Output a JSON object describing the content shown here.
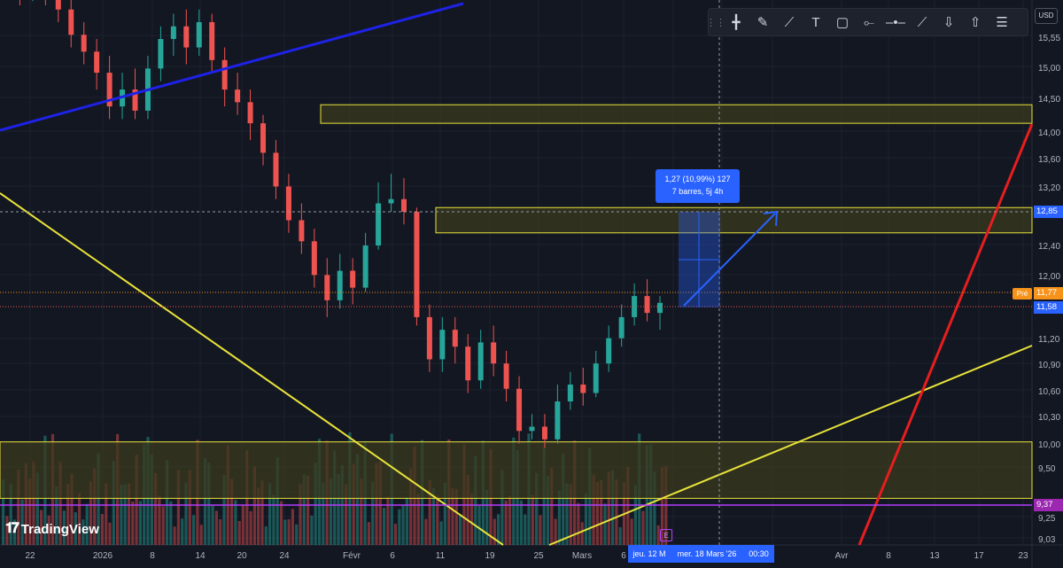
{
  "toolbar": {
    "items": [
      {
        "name": "crosshair-icon",
        "glyph": "╋"
      },
      {
        "name": "brush-icon",
        "glyph": "✎"
      },
      {
        "name": "path-icon",
        "glyph": "⟋"
      },
      {
        "name": "text-icon",
        "glyph": "T"
      },
      {
        "name": "rectangle-icon",
        "glyph": "▢"
      },
      {
        "name": "horizontal-ray-icon",
        "glyph": "⟜"
      },
      {
        "name": "horizontal-line-icon",
        "glyph": "–•–"
      },
      {
        "name": "trend-line-icon",
        "glyph": "⟋"
      },
      {
        "name": "arrow-down-icon",
        "glyph": "⇩"
      },
      {
        "name": "arrow-up-icon",
        "glyph": "⇧"
      },
      {
        "name": "settings-lines-icon",
        "glyph": "☰"
      }
    ]
  },
  "currency": "USD",
  "price_axis": {
    "ticks": [
      "15,55",
      "15,00",
      "14,50",
      "14,00",
      "13,60",
      "13,20",
      "12,85",
      "12,40",
      "12,00",
      "11,58",
      "11,20",
      "10,90",
      "10,60",
      "10,30",
      "10,00",
      "9,50",
      "9,37",
      "9,25",
      "9,03"
    ],
    "tags": [
      {
        "label": "12,85",
        "color": "#2962ff"
      },
      {
        "label": "11,77",
        "color": "#f7931a"
      },
      {
        "label": "11,58",
        "color": "#2962ff"
      },
      {
        "label": "9,37",
        "color": "#9c27b0"
      }
    ],
    "pre_label": "Pré"
  },
  "time_axis": {
    "ticks": [
      "22",
      "2026",
      "8",
      "14",
      "20",
      "24",
      "Févr",
      "6",
      "11",
      "19",
      "25",
      "Mars",
      "6",
      "Avr",
      "8",
      "13",
      "17",
      "23"
    ],
    "selected_date": "jeu. 12 M",
    "cursor_date": "mer. 18 Mars '26",
    "cursor_time": "00:30"
  },
  "measure": {
    "line1": "1,27 (10,99%) 127",
    "line2": "7 barres, 5j 4h"
  },
  "logo": {
    "text": "TradingView"
  },
  "event_badge": "E",
  "colors": {
    "up": "#26a69a",
    "down": "#ef5350",
    "background": "#131722",
    "zone": "#3b3a1e",
    "zone_border": "#e8e33a",
    "blue_line": "#1e22e6",
    "red_line": "#e61e1e",
    "yellow_line": "#e8e33a"
  },
  "chart_data": {
    "type": "candlestick",
    "symbol_currency": "USD",
    "ylim": [
      9.03,
      15.55
    ],
    "candles": [
      {
        "o": 15.62,
        "c": 15.5,
        "h": 15.7,
        "l": 15.4
      },
      {
        "o": 15.5,
        "c": 15.48,
        "h": 15.65,
        "l": 15.3
      },
      {
        "o": 15.48,
        "c": 15.55,
        "h": 15.7,
        "l": 15.35
      },
      {
        "o": 15.55,
        "c": 15.4,
        "h": 15.7,
        "l": 15.3
      },
      {
        "o": 15.4,
        "c": 15.25,
        "h": 15.6,
        "l": 15.1
      },
      {
        "o": 15.25,
        "c": 14.95,
        "h": 15.4,
        "l": 14.8
      },
      {
        "o": 14.95,
        "c": 14.75,
        "h": 15.1,
        "l": 14.6
      },
      {
        "o": 14.75,
        "c": 14.5,
        "h": 14.9,
        "l": 14.3
      },
      {
        "o": 14.5,
        "c": 14.1,
        "h": 14.7,
        "l": 13.95
      },
      {
        "o": 14.1,
        "c": 14.3,
        "h": 14.5,
        "l": 13.95
      },
      {
        "o": 14.3,
        "c": 14.05,
        "h": 14.55,
        "l": 13.95
      },
      {
        "o": 14.05,
        "c": 14.55,
        "h": 14.7,
        "l": 13.95
      },
      {
        "o": 14.55,
        "c": 14.9,
        "h": 15.05,
        "l": 14.4
      },
      {
        "o": 14.9,
        "c": 15.05,
        "h": 15.2,
        "l": 14.7
      },
      {
        "o": 15.05,
        "c": 14.8,
        "h": 15.25,
        "l": 14.6
      },
      {
        "o": 14.8,
        "c": 15.1,
        "h": 15.25,
        "l": 14.7
      },
      {
        "o": 15.1,
        "c": 14.65,
        "h": 15.2,
        "l": 14.5
      },
      {
        "o": 14.65,
        "c": 14.3,
        "h": 14.8,
        "l": 14.1
      },
      {
        "o": 14.3,
        "c": 14.15,
        "h": 14.5,
        "l": 14.0
      },
      {
        "o": 14.15,
        "c": 13.9,
        "h": 14.3,
        "l": 13.7
      },
      {
        "o": 13.9,
        "c": 13.55,
        "h": 14.0,
        "l": 13.4
      },
      {
        "o": 13.55,
        "c": 13.15,
        "h": 13.7,
        "l": 13.0
      },
      {
        "o": 13.15,
        "c": 12.75,
        "h": 13.3,
        "l": 12.6
      },
      {
        "o": 12.75,
        "c": 12.5,
        "h": 12.95,
        "l": 12.35
      },
      {
        "o": 12.5,
        "c": 12.1,
        "h": 12.65,
        "l": 11.95
      },
      {
        "o": 12.1,
        "c": 11.8,
        "h": 12.3,
        "l": 11.6
      },
      {
        "o": 11.8,
        "c": 12.15,
        "h": 12.35,
        "l": 11.7
      },
      {
        "o": 12.15,
        "c": 11.95,
        "h": 12.3,
        "l": 11.75
      },
      {
        "o": 11.95,
        "c": 12.45,
        "h": 12.6,
        "l": 11.9
      },
      {
        "o": 12.45,
        "c": 12.95,
        "h": 13.2,
        "l": 12.4
      },
      {
        "o": 12.95,
        "c": 13.0,
        "h": 13.3,
        "l": 12.85
      },
      {
        "o": 13.0,
        "c": 12.85,
        "h": 13.25,
        "l": 12.7
      },
      {
        "o": 12.85,
        "c": 11.6,
        "h": 12.9,
        "l": 11.5
      },
      {
        "o": 11.6,
        "c": 11.1,
        "h": 11.75,
        "l": 10.95
      },
      {
        "o": 11.1,
        "c": 11.45,
        "h": 11.6,
        "l": 10.95
      },
      {
        "o": 11.45,
        "c": 11.25,
        "h": 11.6,
        "l": 11.05
      },
      {
        "o": 11.25,
        "c": 10.85,
        "h": 11.4,
        "l": 10.7
      },
      {
        "o": 10.85,
        "c": 11.3,
        "h": 11.45,
        "l": 10.75
      },
      {
        "o": 11.3,
        "c": 11.05,
        "h": 11.5,
        "l": 10.9
      },
      {
        "o": 11.05,
        "c": 10.75,
        "h": 11.2,
        "l": 10.6
      },
      {
        "o": 10.75,
        "c": 10.25,
        "h": 10.9,
        "l": 10.1
      },
      {
        "o": 10.25,
        "c": 10.3,
        "h": 10.45,
        "l": 10.15
      },
      {
        "o": 10.3,
        "c": 10.15,
        "h": 10.45,
        "l": 10.05
      },
      {
        "o": 10.15,
        "c": 10.6,
        "h": 10.8,
        "l": 10.1
      },
      {
        "o": 10.6,
        "c": 10.8,
        "h": 10.95,
        "l": 10.5
      },
      {
        "o": 10.8,
        "c": 10.7,
        "h": 11.0,
        "l": 10.55
      },
      {
        "o": 10.7,
        "c": 11.05,
        "h": 11.2,
        "l": 10.65
      },
      {
        "o": 11.05,
        "c": 11.35,
        "h": 11.5,
        "l": 10.95
      },
      {
        "o": 11.35,
        "c": 11.6,
        "h": 11.75,
        "l": 11.25
      },
      {
        "o": 11.6,
        "c": 11.85,
        "h": 12.0,
        "l": 11.5
      },
      {
        "o": 11.85,
        "c": 11.65,
        "h": 12.05,
        "l": 11.55
      },
      {
        "o": 11.65,
        "c": 11.77,
        "h": 11.85,
        "l": 11.45
      }
    ],
    "levels": [
      9.37,
      11.58,
      11.77,
      12.85
    ],
    "zones": [
      {
        "from": 13.9,
        "to": 14.12
      },
      {
        "from": 12.6,
        "to": 12.9
      },
      {
        "from": 9.45,
        "to": 10.12
      }
    ]
  }
}
